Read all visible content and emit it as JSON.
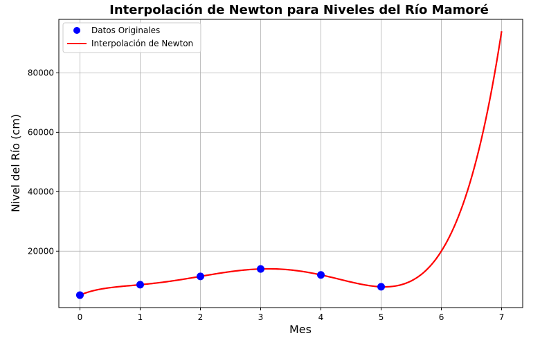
{
  "chart_data": {
    "type": "line",
    "title": "Interpolación de Newton para Niveles del Río Mamoré",
    "xlabel": "Mes",
    "ylabel": "Nivel del Río (cm)",
    "xlim": [
      -0.35,
      7.35
    ],
    "ylim": [
      1000,
      98000
    ],
    "xticks": [
      0,
      1,
      2,
      3,
      4,
      5,
      6,
      7
    ],
    "yticks": [
      20000,
      40000,
      60000,
      80000
    ],
    "grid": true,
    "legend_position": "top-left",
    "series": [
      {
        "name": "Datos Originales",
        "kind": "scatter",
        "color": "#0000ff",
        "x": [
          0,
          1,
          2,
          3,
          4,
          5
        ],
        "y": [
          5200,
          8700,
          11500,
          14000,
          12000,
          8000
        ]
      },
      {
        "name": "Interpolación de Newton",
        "kind": "line",
        "color": "#ff0000",
        "x": [
          0,
          1,
          2,
          3,
          4,
          5,
          6,
          7
        ],
        "y": [
          5200,
          8700,
          11500,
          14000,
          12000,
          8000,
          20000,
          94000
        ]
      }
    ]
  }
}
